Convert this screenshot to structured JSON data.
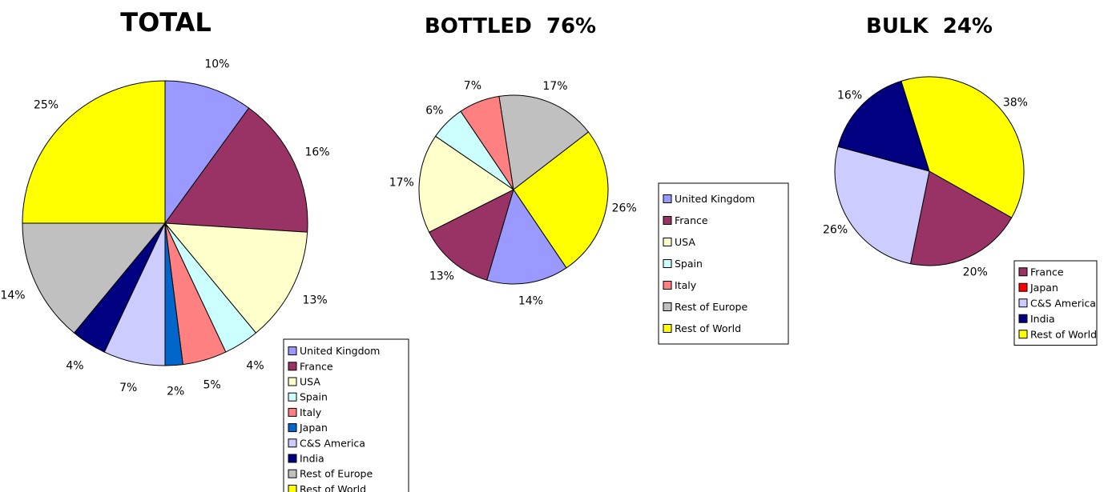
{
  "chart_data": [
    {
      "type": "pie",
      "title": "TOTAL",
      "categories": [
        "United Kingdom",
        "France",
        "USA",
        "Spain",
        "Italy",
        "Japan",
        "C&S America",
        "India",
        "Rest of Europe",
        "Rest of World"
      ],
      "values": [
        10,
        16,
        13,
        4,
        5,
        2,
        7,
        4,
        14,
        25
      ],
      "labels": [
        "10%",
        "16%",
        "13%",
        "4%",
        "5%",
        "2%",
        "7%",
        "4%",
        "14%",
        "25%"
      ],
      "colors": [
        "#9999ff",
        "#993366",
        "#ffffcc",
        "#ccffff",
        "#ff8080",
        "#0066cc",
        "#ccccff",
        "#000080",
        "#c0c0c0",
        "#ffff00"
      ],
      "legend": {
        "placement": "bottom-right",
        "items": [
          "United Kingdom",
          "France",
          "USA",
          "Spain",
          "Italy",
          "Japan",
          "C&S America",
          "India",
          "Rest of Europe",
          "Rest of World"
        ]
      }
    },
    {
      "type": "pie",
      "title": "BOTTLED  76%",
      "categories": [
        "United Kingdom",
        "France",
        "USA",
        "Spain",
        "Italy",
        "Rest of Europe",
        "Rest of World"
      ],
      "values": [
        14,
        13,
        17,
        6,
        7,
        17,
        26
      ],
      "labels": [
        "14%",
        "13%",
        "17%",
        "6%",
        "7%",
        "17%",
        "26%"
      ],
      "colors": [
        "#9999ff",
        "#993366",
        "#ffffcc",
        "#ccffff",
        "#ff8080",
        "#c0c0c0",
        "#ffff00"
      ],
      "legend": {
        "placement": "right",
        "items": [
          "United Kingdom",
          "France",
          "USA",
          "Spain",
          "Italy",
          "Rest of Europe",
          "Rest of World"
        ]
      }
    },
    {
      "type": "pie",
      "title": "BULK  24%",
      "categories": [
        "France",
        "Japan",
        "C&S America",
        "India",
        "Rest of World"
      ],
      "values": [
        20,
        0,
        26,
        16,
        38
      ],
      "labels": [
        "20%",
        "",
        "26%",
        "16%",
        "38%"
      ],
      "colors": [
        "#993366",
        "#ff0000",
        "#ccccff",
        "#000080",
        "#ffff00"
      ],
      "legend": {
        "placement": "bottom-right",
        "items": [
          "France",
          "Japan",
          "C&S America",
          "India",
          "Rest of World"
        ]
      }
    }
  ]
}
